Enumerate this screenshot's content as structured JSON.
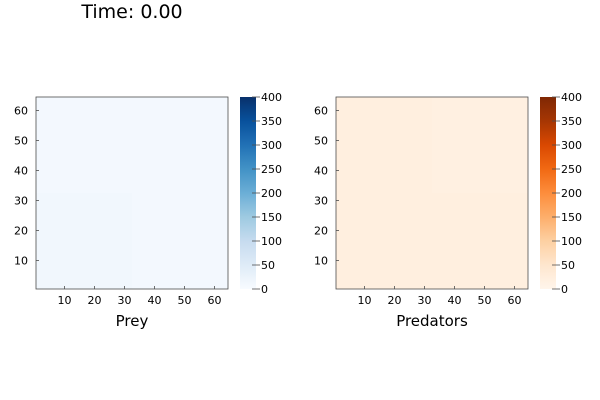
{
  "figure": {
    "title": "Time: 0.00"
  },
  "chart_data": [
    {
      "type": "heatmap",
      "id": "prey",
      "title": "",
      "xlabel": "Prey",
      "ylabel": "",
      "xlim": [
        0.5,
        64.5
      ],
      "ylim": [
        0.5,
        64.5
      ],
      "xticks": [
        10,
        20,
        30,
        40,
        50,
        60
      ],
      "yticks": [
        10,
        20,
        30,
        40,
        50,
        60
      ],
      "grid": false,
      "colormap": "Blues",
      "clim": [
        0,
        400
      ],
      "colorbar_ticks": [
        0,
        50,
        100,
        150,
        200,
        250,
        300,
        350,
        400
      ],
      "regions": [
        {
          "x": [
            0.5,
            32.5
          ],
          "y": [
            0.5,
            32.5
          ],
          "value": 12
        },
        {
          "x": [
            32.5,
            64.5
          ],
          "y": [
            0.5,
            32.5
          ],
          "value": 8
        },
        {
          "x": [
            0.5,
            32.5
          ],
          "y": [
            32.5,
            64.5
          ],
          "value": 8
        },
        {
          "x": [
            32.5,
            64.5
          ],
          "y": [
            32.5,
            64.5
          ],
          "value": 8
        }
      ],
      "colors": {
        "low": "#f7fbff",
        "high": "#08306b"
      }
    },
    {
      "type": "heatmap",
      "id": "predators",
      "title": "",
      "xlabel": "Predators",
      "ylabel": "",
      "xlim": [
        0.5,
        64.5
      ],
      "ylim": [
        0.5,
        64.5
      ],
      "xticks": [
        10,
        20,
        30,
        40,
        50,
        60
      ],
      "yticks": [
        10,
        20,
        30,
        40,
        50,
        60
      ],
      "grid": false,
      "colormap": "Oranges",
      "clim": [
        0,
        400
      ],
      "colorbar_ticks": [
        0,
        50,
        100,
        150,
        200,
        250,
        300,
        350,
        400
      ],
      "regions": [
        {
          "x": [
            0.5,
            32.5
          ],
          "y": [
            0.5,
            32.5
          ],
          "value": 20
        },
        {
          "x": [
            32.5,
            64.5
          ],
          "y": [
            0.5,
            32.5
          ],
          "value": 20
        },
        {
          "x": [
            0.5,
            32.5
          ],
          "y": [
            32.5,
            64.5
          ],
          "value": 20
        },
        {
          "x": [
            32.5,
            64.5
          ],
          "y": [
            32.5,
            64.5
          ],
          "value": 18
        }
      ],
      "colors": {
        "low": "#fff5eb",
        "high": "#7f2704"
      }
    }
  ]
}
